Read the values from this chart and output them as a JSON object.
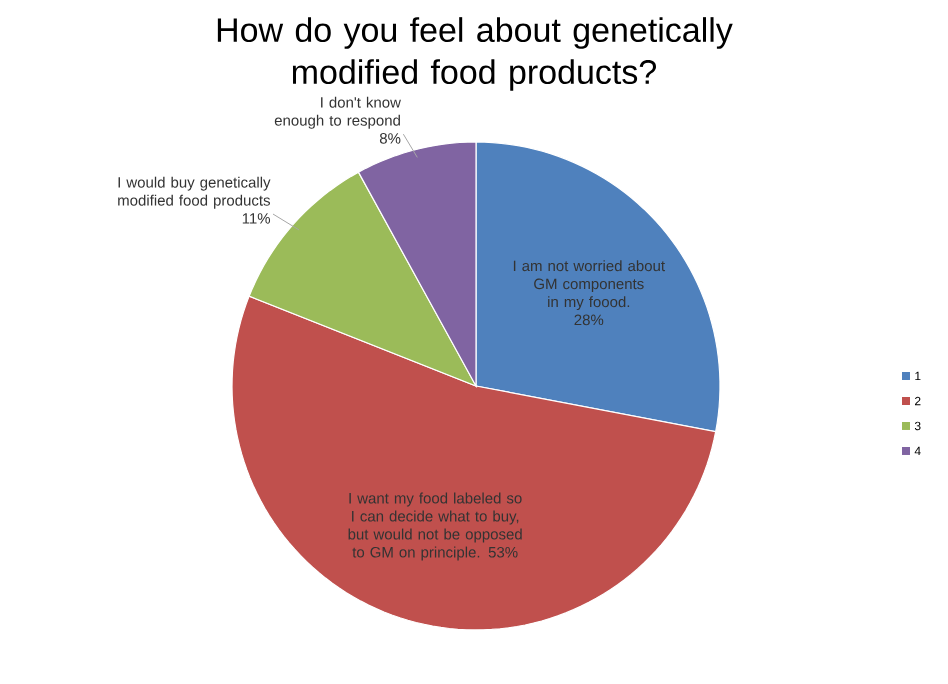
{
  "chart_data": {
    "type": "pie",
    "title": "How do you feel about genetically modified food products?",
    "categories": [
      "1",
      "2",
      "3",
      "4"
    ],
    "values": [
      28,
      53,
      11,
      8
    ],
    "value_labels": [
      "28%",
      "53%",
      "11%",
      "8%"
    ],
    "colors": [
      "#4f81bd",
      "#c0504d",
      "#9bbb59",
      "#8064a2"
    ],
    "annotations": [
      "I am not worried about GM components in my foood.",
      "I want my food labeled so I can decide what to buy, but would not be opposed to GM on principle.",
      "I would buy genetically modified food products",
      "I don't know enough to respond"
    ],
    "legend": "right"
  }
}
